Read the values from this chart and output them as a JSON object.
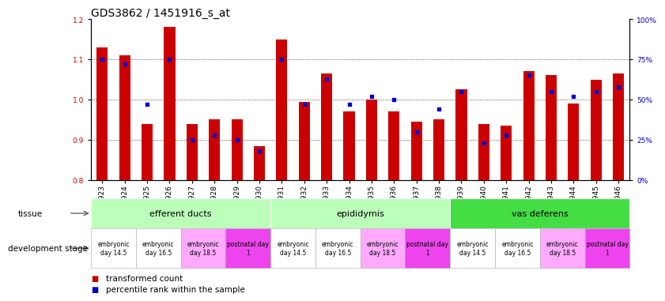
{
  "title": "GDS3862 / 1451916_s_at",
  "samples": [
    "GSM560923",
    "GSM560924",
    "GSM560925",
    "GSM560926",
    "GSM560927",
    "GSM560928",
    "GSM560929",
    "GSM560930",
    "GSM560931",
    "GSM560932",
    "GSM560933",
    "GSM560934",
    "GSM560935",
    "GSM560936",
    "GSM560937",
    "GSM560938",
    "GSM560939",
    "GSM560940",
    "GSM560941",
    "GSM560942",
    "GSM560943",
    "GSM560944",
    "GSM560945",
    "GSM560946"
  ],
  "red_values": [
    1.13,
    1.11,
    0.94,
    1.18,
    0.94,
    0.95,
    0.95,
    0.885,
    1.15,
    0.995,
    1.065,
    0.97,
    1.0,
    0.97,
    0.945,
    0.95,
    1.025,
    0.94,
    0.935,
    1.07,
    1.06,
    0.99,
    1.05,
    1.065
  ],
  "blue_values": [
    75,
    72,
    47,
    75,
    25,
    28,
    25,
    18,
    75,
    47,
    63,
    47,
    52,
    50,
    30,
    44,
    55,
    23,
    28,
    65,
    55,
    52,
    55,
    58
  ],
  "ylim_left": [
    0.8,
    1.2
  ],
  "ylim_right": [
    0,
    100
  ],
  "yticks_left": [
    0.8,
    0.9,
    1.0,
    1.1,
    1.2
  ],
  "yticks_right": [
    0,
    25,
    50,
    75,
    100
  ],
  "bar_color": "#cc0000",
  "dot_color": "#0000cc",
  "left_tick_color": "#cc0000",
  "right_tick_color": "#0000cc",
  "grid_color": "#000000",
  "tissue_groups": [
    {
      "label": "efferent ducts",
      "start": 0,
      "end": 7,
      "color": "#bbffbb"
    },
    {
      "label": "epididymis",
      "start": 8,
      "end": 15,
      "color": "#bbffbb"
    },
    {
      "label": "vas deferens",
      "start": 16,
      "end": 23,
      "color": "#44dd44"
    }
  ],
  "dev_stages": [
    {
      "label": "embryonic\nday 14.5",
      "start": 0,
      "end": 1,
      "color": "#ffffff"
    },
    {
      "label": "embryonic\nday 16.5",
      "start": 2,
      "end": 3,
      "color": "#ffffff"
    },
    {
      "label": "embryonic\nday 18.5",
      "start": 4,
      "end": 5,
      "color": "#ffaaff"
    },
    {
      "label": "postnatal day\n1",
      "start": 6,
      "end": 7,
      "color": "#ee44ee"
    },
    {
      "label": "embryonic\nday 14.5",
      "start": 8,
      "end": 9,
      "color": "#ffffff"
    },
    {
      "label": "embryonic\nday 16.5",
      "start": 10,
      "end": 11,
      "color": "#ffffff"
    },
    {
      "label": "embryonic\nday 18.5",
      "start": 12,
      "end": 13,
      "color": "#ffaaff"
    },
    {
      "label": "postnatal day\n1",
      "start": 14,
      "end": 15,
      "color": "#ee44ee"
    },
    {
      "label": "embryonic\nday 14.5",
      "start": 16,
      "end": 17,
      "color": "#ffffff"
    },
    {
      "label": "embryonic\nday 16.5",
      "start": 18,
      "end": 19,
      "color": "#ffffff"
    },
    {
      "label": "embryonic\nday 18.5",
      "start": 20,
      "end": 21,
      "color": "#ffaaff"
    },
    {
      "label": "postnatal day\n1",
      "start": 22,
      "end": 23,
      "color": "#ee44ee"
    }
  ],
  "background_color": "#ffffff",
  "legend_red": "transformed count",
  "legend_blue": "percentile rank within the sample",
  "fontsize_title": 10,
  "fontsize_tick": 6.5,
  "fontsize_label": 7.5,
  "fontsize_dev": 5.5,
  "fontsize_tissue": 8
}
